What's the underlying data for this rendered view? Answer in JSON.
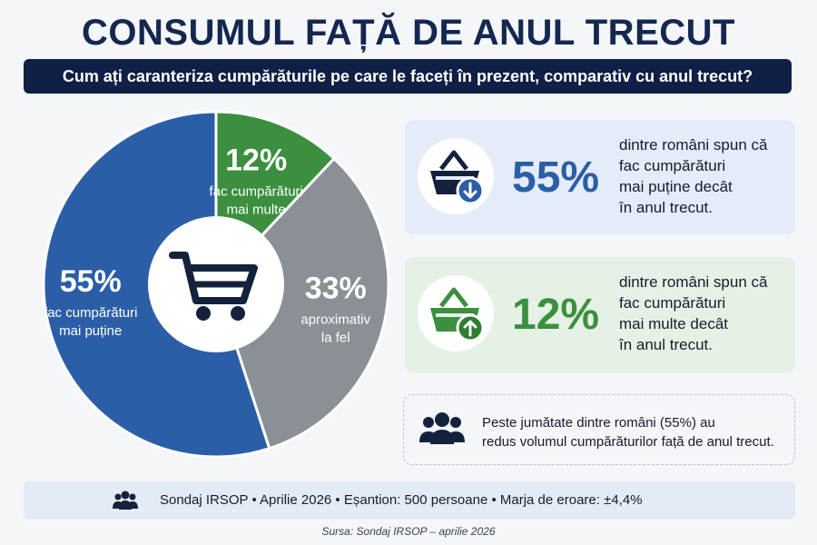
{
  "title": "CONSUMUL FAȚĂ DE ANUL TRECUT",
  "question": "Cum ați caranteriza cumpărăturile pe care le faceți în prezent, comparativ cu anul trecut?",
  "chart_data": {
    "type": "pie",
    "center_icon": "shopping-cart-icon",
    "slices": [
      {
        "name": "mai puține",
        "value": 55,
        "pct_label": "55%",
        "label_lines": [
          "fac cumpărături",
          "mai puține"
        ],
        "color": "#2c5ea8"
      },
      {
        "name": "mai multe",
        "value": 12,
        "pct_label": "12%",
        "label_lines": [
          "fac cumpărături",
          "mai multe"
        ],
        "color": "#3b8f3f"
      },
      {
        "name": "la fel",
        "value": 33,
        "pct_label": "33%",
        "label_lines": [
          "aproximativ",
          "la fel"
        ],
        "color": "#8b8f96"
      }
    ]
  },
  "cards": [
    {
      "pct": "55%",
      "icon": "basket-down-icon",
      "lines": [
        "dintre români spun că",
        "fac cumpărături",
        "mai puține decât",
        "în anul trecut."
      ]
    },
    {
      "pct": "12%",
      "icon": "basket-up-icon",
      "lines": [
        "dintre români spun că",
        "fac cumpărături",
        "mai multe decât",
        "în anul trecut."
      ]
    }
  ],
  "note": {
    "icon": "people-icon",
    "lines": [
      "Peste jumătate dintre români (55%) au",
      "redus volumul cumpărăturilor față de anul trecut."
    ]
  },
  "footer": {
    "icon": "people-icon",
    "text": "Sondaj IRSOP  •  Aprilie 2026  •  Eșantion: 500 persoane  •  Marja de eroare: ±4,4%"
  },
  "source": "Sursa: Sondaj IRSOP – aprilie 2026",
  "colors": {
    "navy": "#0f1f45",
    "blue": "#2c5ea8",
    "green": "#3b8f3f",
    "gray": "#8b8f96"
  }
}
